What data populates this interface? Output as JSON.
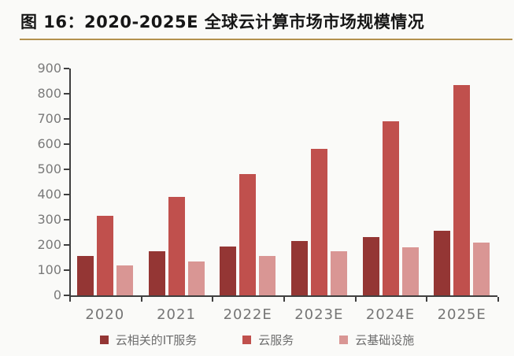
{
  "header": {
    "title": "图 16：2020-2025E 全球云计算市场市场规模情况"
  },
  "chart_data": {
    "type": "bar",
    "title": "图 16：2020-2025E 全球云计算市场市场规模情况",
    "categories": [
      "2020",
      "2021",
      "2022E",
      "2023E",
      "2024E",
      "2025E"
    ],
    "series": [
      {
        "name": "云相关的IT服务",
        "color": "#943634",
        "values": [
          155,
          175,
          195,
          215,
          230,
          255
        ]
      },
      {
        "name": "云服务",
        "color": "#C0504D",
        "values": [
          315,
          390,
          480,
          580,
          690,
          835
        ]
      },
      {
        "name": "云基础设施",
        "color": "#D99694",
        "values": [
          120,
          135,
          155,
          175,
          190,
          210
        ]
      }
    ],
    "xlabel": "",
    "ylabel": "",
    "ylim": [
      0,
      900
    ],
    "ytick_step": 100,
    "yticks": [
      "900",
      "800",
      "700",
      "600",
      "500",
      "400",
      "300",
      "200",
      "100",
      "0"
    ],
    "grid": false,
    "legend_position": "bottom",
    "colors": {
      "axis": "#3f3f3f",
      "tick_label": "#7a7a7a",
      "legend_text": "#6e6e6e",
      "title_underline": "#b3914e",
      "background": "#fafaf8"
    }
  }
}
